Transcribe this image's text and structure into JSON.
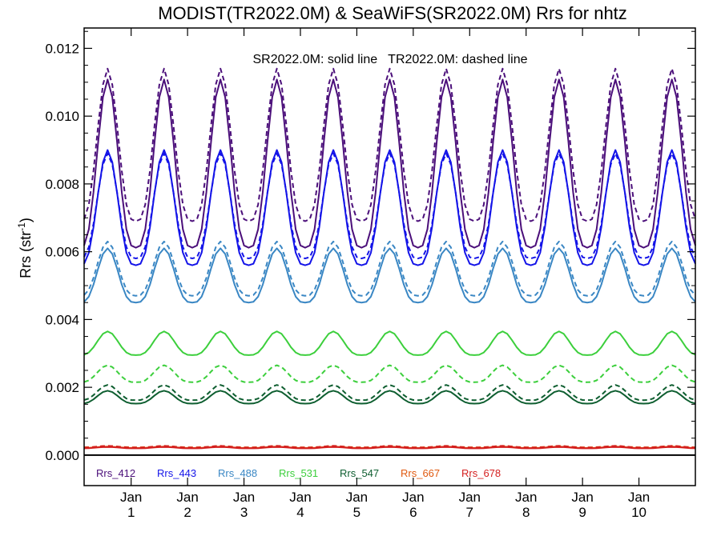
{
  "chart_data": {
    "type": "line",
    "title": "MODIST(TR2022.0M) & SeaWiFS(SR2022.0M)  Rrs for nhtz",
    "annotation": "SR2022.0M: solid line   TR2022.0M: dashed line",
    "ylabel": "Rrs (str",
    "ylabel_sup": "-1",
    "ylabel_close": ")",
    "ylim": [
      -0.0009,
      0.0126
    ],
    "xlim": [
      0,
      130
    ],
    "y_ticks": [
      {
        "value": 0.0,
        "label": "0.000"
      },
      {
        "value": 0.002,
        "label": "0.002"
      },
      {
        "value": 0.004,
        "label": "0.004"
      },
      {
        "value": 0.006,
        "label": "0.006"
      },
      {
        "value": 0.008,
        "label": "0.008"
      },
      {
        "value": 0.01,
        "label": "0.010"
      },
      {
        "value": 0.012,
        "label": "0.012"
      }
    ],
    "x_ticks": [
      {
        "x": 10,
        "month": "Jan",
        "year": "1"
      },
      {
        "x": 22,
        "month": "Jan",
        "year": "2"
      },
      {
        "x": 34,
        "month": "Jan",
        "year": "3"
      },
      {
        "x": 46,
        "month": "Jan",
        "year": "4"
      },
      {
        "x": 58,
        "month": "Jan",
        "year": "5"
      },
      {
        "x": 70,
        "month": "Jan",
        "year": "6"
      },
      {
        "x": 82,
        "month": "Jan",
        "year": "7"
      },
      {
        "x": 94,
        "month": "Jan",
        "year": "8"
      },
      {
        "x": 106,
        "month": "Jan",
        "year": "9"
      },
      {
        "x": 118,
        "month": "Jan",
        "year": "10"
      }
    ],
    "zero_line": 0.0,
    "grid": false,
    "legend_position": "bottom-left",
    "series": [
      {
        "name": "Rrs_412",
        "color": "#4b0f7a",
        "solid": {
          "base": 0.00612,
          "amp": 0.00496,
          "phase": 5
        },
        "dashed": {
          "base": 0.0069,
          "amp": 0.0045,
          "phase": 5
        }
      },
      {
        "name": "Rrs_443",
        "color": "#1414e8",
        "solid": {
          "base": 0.0056,
          "amp": 0.0034,
          "phase": 5
        },
        "dashed": {
          "base": 0.0058,
          "amp": 0.0031,
          "phase": 5
        }
      },
      {
        "name": "Rrs_488",
        "color": "#3a87c4",
        "solid": {
          "base": 0.0045,
          "amp": 0.0016,
          "phase": 5
        },
        "dashed": {
          "base": 0.0047,
          "amp": 0.0016,
          "phase": 5
        }
      },
      {
        "name": "Rrs_531",
        "color": "#3ccf3c",
        "solid": {
          "base": 0.00295,
          "amp": 0.0007,
          "phase": 5
        },
        "dashed": {
          "base": 0.00215,
          "amp": 0.0005,
          "phase": 5
        }
      },
      {
        "name": "Rrs_547",
        "color": "#0e5e30",
        "solid": {
          "base": 0.00152,
          "amp": 0.00038,
          "phase": 5
        },
        "dashed": {
          "base": 0.00162,
          "amp": 0.00045,
          "phase": 5
        }
      },
      {
        "name": "Rrs_667",
        "color": "#e05a10",
        "solid": {
          "base": 0.00021,
          "amp": 4e-05,
          "phase": 5
        },
        "dashed": {
          "base": 0.00023,
          "amp": 4e-05,
          "phase": 5
        }
      },
      {
        "name": "Rrs_678",
        "color": "#d41f1f",
        "solid": {
          "base": 0.0002,
          "amp": 4e-05,
          "phase": 5
        },
        "dashed": {
          "base": 0.00022,
          "amp": 5e-05,
          "phase": 5
        }
      }
    ]
  }
}
